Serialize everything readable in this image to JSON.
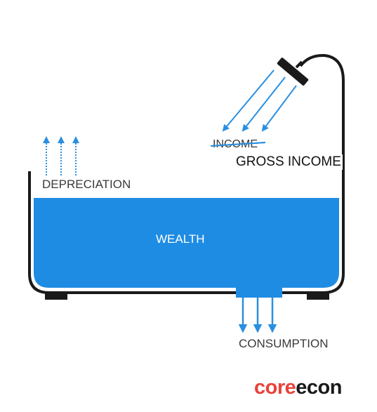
{
  "labels": {
    "income": "INCOME",
    "gross_income": "GROSS INCOME",
    "depreciation": "DEPRECIATION",
    "wealth": "WEALTH",
    "consumption": "CONSUMPTION"
  },
  "logo": {
    "part1": "core",
    "part2": "econ"
  },
  "colors": {
    "water": "#1f8ce3",
    "arrow": "#2a8fe0",
    "tub_outline": "#1a1a1a",
    "logo_red": "#e8423b"
  },
  "icons": [
    "shower-head-icon",
    "bathtub-icon"
  ]
}
